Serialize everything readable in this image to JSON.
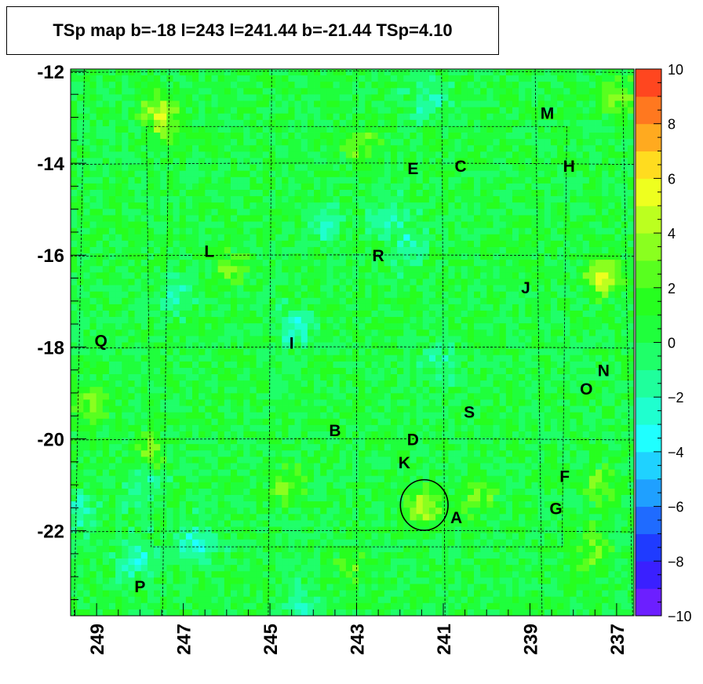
{
  "chart_data": {
    "type": "heatmap",
    "title": "TSp map b=-18 l=243 l=241.44 b=-21.44 TSp=4.10",
    "xlabel": "",
    "ylabel": "",
    "x_axis": {
      "reversed": true,
      "range": [
        249.6,
        236.6
      ],
      "tick_labels": [
        "249",
        "247",
        "245",
        "243",
        "241",
        "239",
        "237"
      ],
      "tick_values": [
        249,
        247,
        245,
        243,
        241,
        239,
        237
      ]
    },
    "y_axis": {
      "range": [
        -23.85,
        -11.95
      ],
      "tick_labels": [
        "-12",
        "-14",
        "-16",
        "-18",
        "-20",
        "-22"
      ],
      "tick_values": [
        -12,
        -14,
        -16,
        -18,
        -20,
        -22
      ]
    },
    "colorbar": {
      "range": [
        -10,
        10
      ],
      "tick_labels": [
        "10",
        "8",
        "6",
        "4",
        "2",
        "0",
        "−2",
        "−4",
        "−6",
        "−8",
        "−10"
      ],
      "tick_values": [
        10,
        8,
        6,
        4,
        2,
        0,
        -2,
        -4,
        -6,
        -8,
        -10
      ],
      "colors": [
        "#6c1fff",
        "#3a20ff",
        "#1f3bff",
        "#1f6bff",
        "#1fa0ff",
        "#1fd2ff",
        "#1fffff",
        "#1fffcf",
        "#1fff9c",
        "#1fff69",
        "#1fff3c",
        "#26ff1f",
        "#58ff1f",
        "#8aff1f",
        "#bcff1f",
        "#eeff1f",
        "#ffdc1f",
        "#ffaa1f",
        "#ff781f",
        "#ff461f"
      ]
    },
    "labeled_sources": [
      {
        "label": "M",
        "l": 238.6,
        "b": -12.9
      },
      {
        "label": "E",
        "l": 241.7,
        "b": -14.1
      },
      {
        "label": "C",
        "l": 240.6,
        "b": -14.05
      },
      {
        "label": "H",
        "l": 238.1,
        "b": -14.05
      },
      {
        "label": "L",
        "l": 246.4,
        "b": -15.9
      },
      {
        "label": "R",
        "l": 242.5,
        "b": -16.0
      },
      {
        "label": "J",
        "l": 239.1,
        "b": -16.7
      },
      {
        "label": "Q",
        "l": 248.9,
        "b": -17.85
      },
      {
        "label": "I",
        "l": 244.5,
        "b": -17.9
      },
      {
        "label": "N",
        "l": 237.3,
        "b": -18.5
      },
      {
        "label": "O",
        "l": 237.7,
        "b": -18.9
      },
      {
        "label": "S",
        "l": 240.4,
        "b": -19.4
      },
      {
        "label": "B",
        "l": 243.5,
        "b": -19.8
      },
      {
        "label": "D",
        "l": 241.7,
        "b": -20.0
      },
      {
        "label": "K",
        "l": 241.9,
        "b": -20.5
      },
      {
        "label": "F",
        "l": 238.2,
        "b": -20.8
      },
      {
        "label": "G",
        "l": 238.4,
        "b": -21.5
      },
      {
        "label": "A",
        "l": 240.7,
        "b": -21.7
      },
      {
        "label": "P",
        "l": 248.0,
        "b": -23.2
      }
    ],
    "marker_circle": {
      "l": 241.44,
      "b": -21.44,
      "radius_deg": 0.55
    },
    "hotspots": [
      {
        "l": 237.3,
        "b": -16.5,
        "value": 4.5
      },
      {
        "l": 247.6,
        "b": -12.8,
        "value": 3.2
      },
      {
        "l": 237.0,
        "b": -12.6,
        "value": 3.0
      },
      {
        "l": 241.44,
        "b": -21.44,
        "value": 4.1
      },
      {
        "l": 249.1,
        "b": -19.2,
        "value": 3.0
      },
      {
        "l": 242.9,
        "b": -13.6,
        "value": 2.8
      },
      {
        "l": 247.8,
        "b": -20.3,
        "value": 2.6
      },
      {
        "l": 237.6,
        "b": -22.4,
        "value": 2.6
      },
      {
        "l": 245.9,
        "b": -16.3,
        "value": 2.3
      },
      {
        "l": 244.6,
        "b": -21.0,
        "value": 2.3
      },
      {
        "l": 240.2,
        "b": -21.3,
        "value": 2.5
      },
      {
        "l": 237.4,
        "b": -21.0,
        "value": 2.4
      },
      {
        "l": 247.4,
        "b": -13.2,
        "value": 2.5
      },
      {
        "l": 243.1,
        "b": -22.8,
        "value": 1.8
      }
    ],
    "coldspots": [
      {
        "l": 246.7,
        "b": -22.3,
        "value": -3.5
      },
      {
        "l": 244.4,
        "b": -17.6,
        "value": -2.8
      },
      {
        "l": 248.1,
        "b": -22.6,
        "value": -3.0
      },
      {
        "l": 249.5,
        "b": -21.6,
        "value": -2.6
      },
      {
        "l": 244.3,
        "b": -23.6,
        "value": -2.5
      },
      {
        "l": 241.8,
        "b": -15.8,
        "value": -2.4
      },
      {
        "l": 241.3,
        "b": -12.6,
        "value": -2.5
      },
      {
        "l": 247.2,
        "b": -16.9,
        "value": -2.2
      },
      {
        "l": 247.9,
        "b": -21.0,
        "value": -2.2
      },
      {
        "l": 243.8,
        "b": -15.3,
        "value": -2.2
      },
      {
        "l": 242.3,
        "b": -15.2,
        "value": -2.0
      },
      {
        "l": 241.0,
        "b": -18.4,
        "value": -2.0
      }
    ]
  }
}
